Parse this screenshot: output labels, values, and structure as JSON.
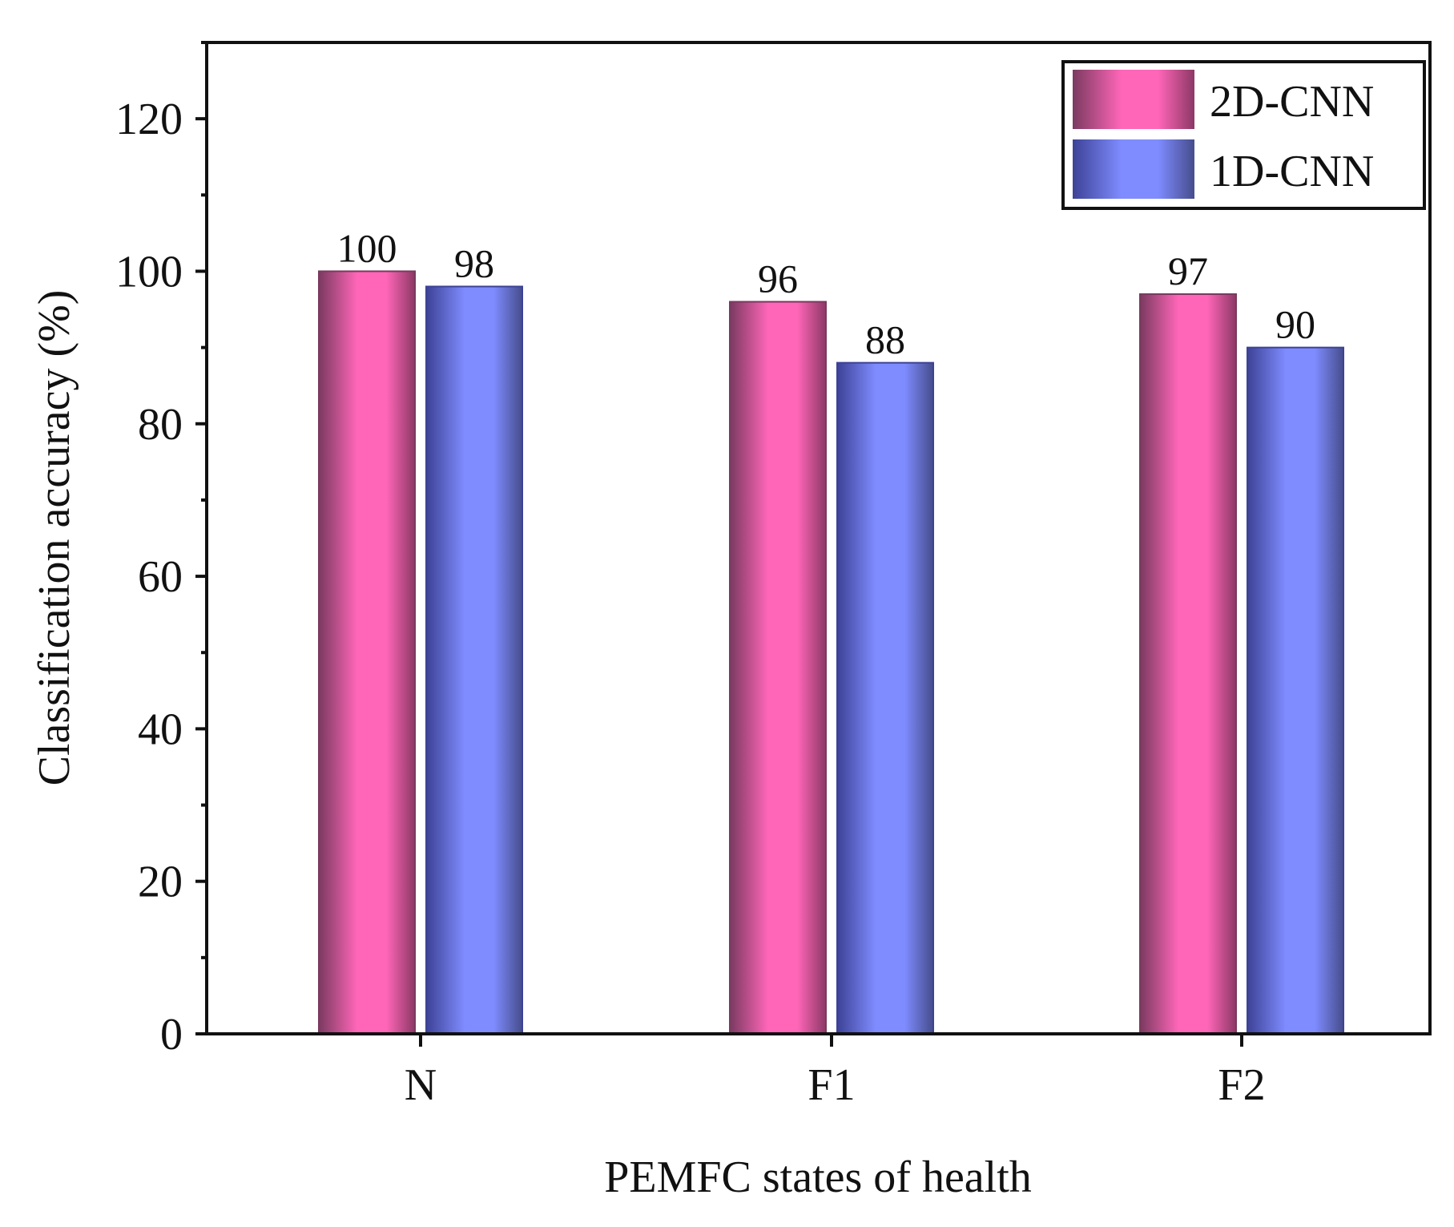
{
  "chart_data": {
    "type": "bar",
    "title": "",
    "xlabel": "PEMFC states of health",
    "ylabel": "Classification accuracy (%)",
    "categories": [
      "N",
      "F1",
      "F2"
    ],
    "series": [
      {
        "name": "2D-CNN",
        "values": [
          100,
          96,
          97
        ],
        "color": "#ff66b8",
        "edge_color": "#7a3a60"
      },
      {
        "name": "1D-CNN",
        "values": [
          98,
          88,
          90
        ],
        "color": "#7f8cff",
        "edge_color": "#3d4296"
      }
    ],
    "data_labels": [
      [
        "100",
        "96",
        "97"
      ],
      [
        "98",
        "88",
        "90"
      ]
    ],
    "ylim": [
      0,
      130
    ],
    "yticks": [
      0,
      20,
      40,
      60,
      80,
      100,
      120
    ],
    "ytick_labels": [
      "0",
      "20",
      "40",
      "60",
      "80",
      "100",
      "120"
    ],
    "grid": false,
    "legend_position": "top-right"
  }
}
